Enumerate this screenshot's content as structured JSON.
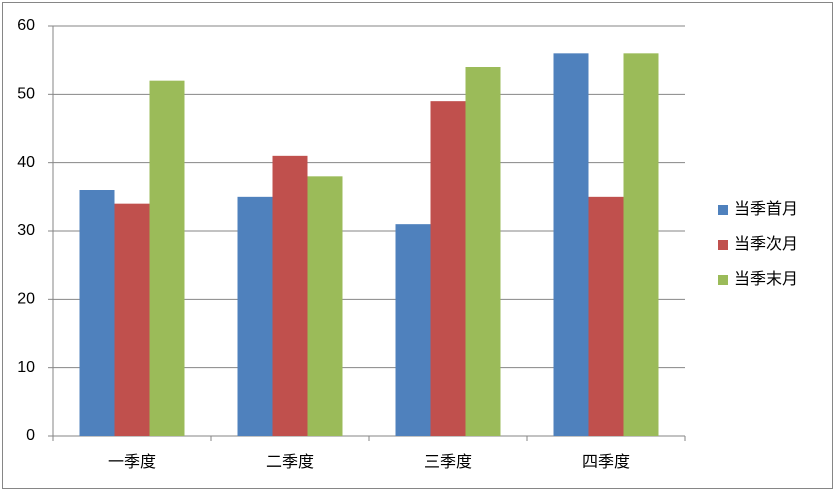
{
  "chart_data": {
    "type": "bar",
    "categories": [
      "一季度",
      "二季度",
      "三季度",
      "四季度"
    ],
    "series": [
      {
        "name": "当季首月",
        "color": "#4f81bd",
        "values": [
          36,
          35,
          31,
          56
        ]
      },
      {
        "name": "当季次月",
        "color": "#c0504d",
        "values": [
          34,
          41,
          49,
          35
        ]
      },
      {
        "name": "当季末月",
        "color": "#9bbb59",
        "values": [
          52,
          38,
          54,
          56
        ]
      }
    ],
    "ylim": [
      0,
      60
    ],
    "yticks": [
      0,
      10,
      20,
      30,
      40,
      50,
      60
    ],
    "grid": true,
    "legend": "right"
  }
}
